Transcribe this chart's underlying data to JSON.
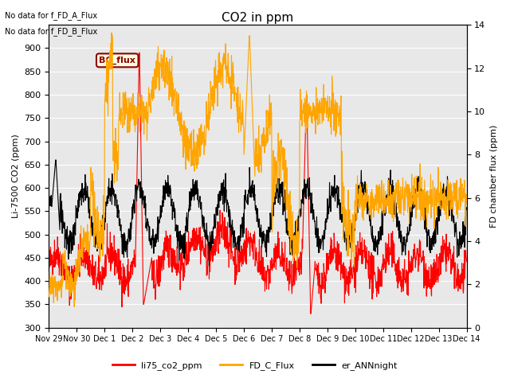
{
  "title": "CO2 in ppm",
  "ylabel_left": "Li-7500 CO2 (ppm)",
  "ylabel_right": "FD chamber flux (ppm)",
  "text_no_data_1": "No data for f_FD_A_Flux",
  "text_no_data_2": "No data for f_FD_B_Flux",
  "bc_flux_label": "BC_flux",
  "legend_entries": [
    "li75_co2_ppm",
    "FD_C_Flux",
    "er_ANNnight"
  ],
  "colors": {
    "li75": "#ff0000",
    "fd_c": "#ffa500",
    "er_ann": "#000000"
  },
  "ylim_left": [
    300,
    950
  ],
  "ylim_right": [
    0,
    14
  ],
  "plot_bg": "#e8e8e8",
  "xtick_labels": [
    "Nov 29",
    "Nov 30",
    "Dec 1",
    "Dec 2",
    "Dec 3",
    "Dec 4",
    "Dec 5",
    "Dec 6",
    "Dec 7",
    "Dec 8",
    "Dec 9",
    "Dec 10",
    "Dec 11",
    "Dec 12",
    "Dec 13",
    "Dec 14"
  ],
  "yticks_left": [
    300,
    350,
    400,
    450,
    500,
    550,
    600,
    650,
    700,
    750,
    800,
    850,
    900
  ],
  "yticks_right": [
    0,
    2,
    4,
    6,
    8,
    10,
    12,
    14
  ]
}
